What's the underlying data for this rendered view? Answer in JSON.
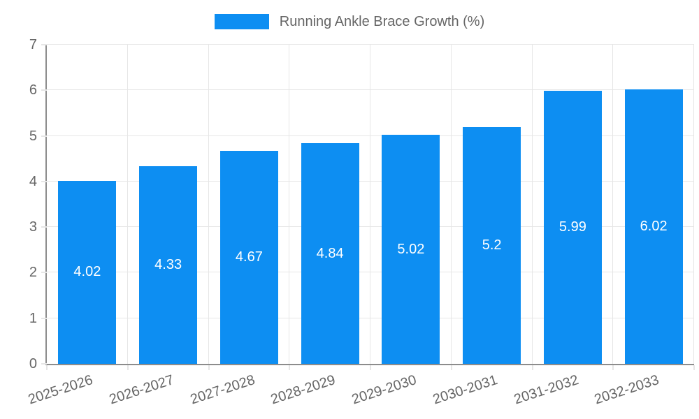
{
  "chart_data": {
    "type": "bar",
    "title": "Running Ankle Brace Growth (%)",
    "legend_position": "top",
    "categories": [
      "2025-2026",
      "2026-2027",
      "2027-2028",
      "2028-2029",
      "2029-2030",
      "2030-2031",
      "2031-2032",
      "2032-2033"
    ],
    "values": [
      4.02,
      4.33,
      4.67,
      4.84,
      5.02,
      5.2,
      5.99,
      6.02
    ],
    "bar_labels": [
      "4.02",
      "4.33",
      "4.67",
      "4.84",
      "5.02",
      "5.2",
      "5.99",
      "6.02"
    ],
    "bar_label_position": "center-inside",
    "xlabel": "",
    "ylabel": "",
    "ylim": [
      0,
      7
    ],
    "yticks": [
      "0",
      "1",
      "2",
      "3",
      "4",
      "5",
      "6",
      "7"
    ],
    "grid": true,
    "x_tick_rotation_deg": -18,
    "colors": {
      "bar": "#0d8ef2",
      "bar_label": "#ffffff",
      "axis_text": "#666666",
      "grid_line": "#e6e6e6",
      "axis_line": "#8c8c8c"
    }
  }
}
